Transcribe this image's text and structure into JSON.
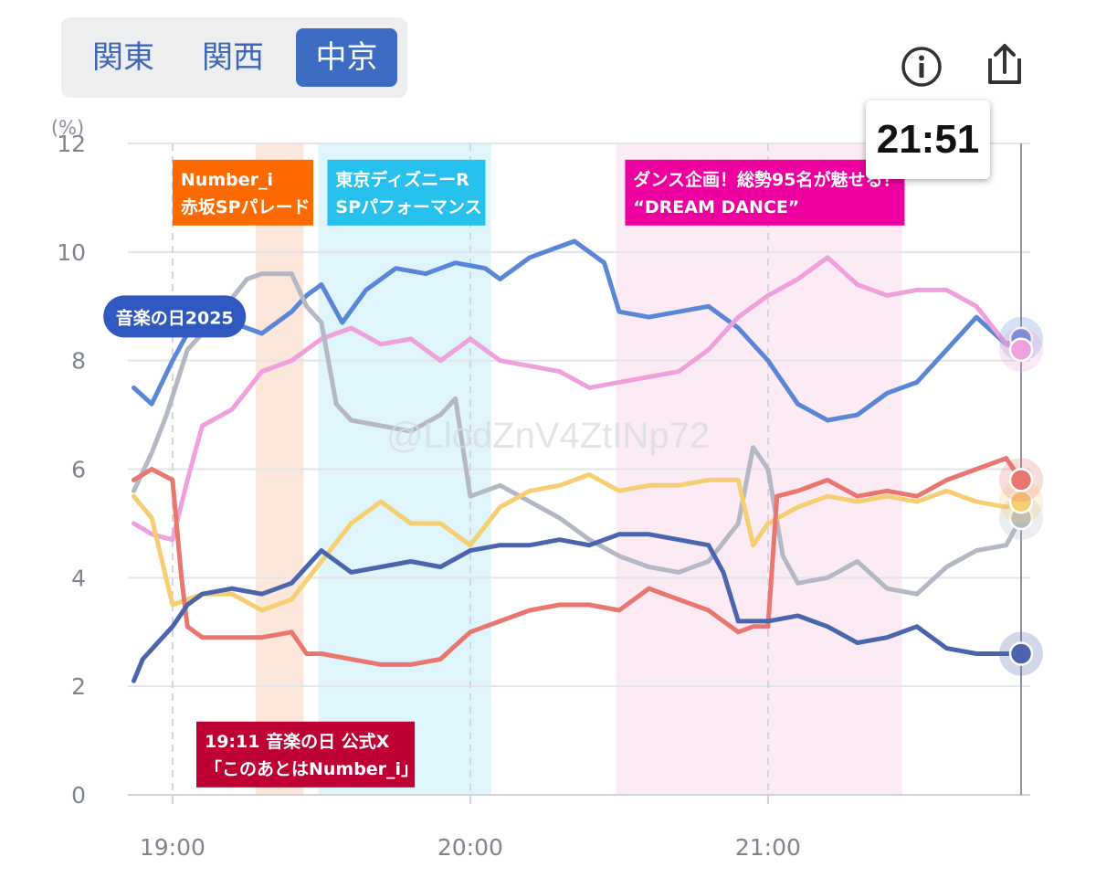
{
  "tabs": [
    {
      "label": "関東",
      "active": false
    },
    {
      "label": "関西",
      "active": false
    },
    {
      "label": "中京",
      "active": true
    }
  ],
  "icons": {
    "info": "info-icon",
    "share": "share-icon"
  },
  "time_readout": "21:51",
  "watermark": "@LlodZnV4ZtINp72",
  "chart_data": {
    "type": "line",
    "ylabel": "(%)",
    "ylim": [
      0,
      12
    ],
    "yticks": [
      "0",
      "2",
      "4",
      "6",
      "8",
      "10",
      "12"
    ],
    "xlim": [
      18.85,
      21.85
    ],
    "xticks": [
      {
        "value": 19,
        "label": "19:00"
      },
      {
        "value": 20,
        "label": "20:00"
      },
      {
        "value": 21,
        "label": "21:00"
      }
    ],
    "grid": true,
    "cursor_x": 21.85,
    "bands": [
      {
        "start": 19.28,
        "end": 19.44,
        "color": "#fde6da"
      },
      {
        "start": 19.49,
        "end": 20.07,
        "color": "#dff5fc"
      },
      {
        "start": 20.49,
        "end": 21.45,
        "color": "#fcebf4"
      }
    ],
    "annotations": [
      {
        "lines": [
          "Number_i",
          "赤坂SPパレード"
        ],
        "color": "#ff6a00",
        "at": 19.0,
        "y": 11.7
      },
      {
        "lines": [
          "東京ディズニーR",
          "SPパフォーマンス"
        ],
        "color": "#28c0ec",
        "at": 19.52,
        "y": 11.7
      },
      {
        "lines": [
          "ダンス企画！総勢95名が魅せる！",
          "“DREAM DANCE”"
        ],
        "color": "#ee00a0",
        "at": 20.52,
        "y": 11.7
      },
      {
        "lines": [
          "19:11 音楽の日 公式X",
          "「このあとはNumber_i」"
        ],
        "color": "#bf0033",
        "at": 19.08,
        "y": 1.35
      }
    ],
    "program_label": {
      "text": "音楽の日2025",
      "color": "#2f58c0",
      "x": 19.05,
      "y": 9.2
    },
    "series": [
      {
        "color": "#5a86d8",
        "x": [
          18.87,
          18.93,
          19.0,
          19.05,
          19.1,
          19.2,
          19.3,
          19.4,
          19.45,
          19.5,
          19.57,
          19.65,
          19.75,
          19.85,
          19.95,
          20.05,
          20.1,
          20.2,
          20.3,
          20.35,
          20.45,
          20.5,
          20.6,
          20.7,
          20.8,
          20.9,
          21.0,
          21.1,
          21.2,
          21.3,
          21.4,
          21.5,
          21.6,
          21.7,
          21.8,
          21.85
        ],
        "values": [
          7.5,
          7.2,
          8.0,
          8.5,
          8.6,
          8.7,
          8.5,
          8.9,
          9.2,
          9.4,
          8.7,
          9.3,
          9.7,
          9.6,
          9.8,
          9.7,
          9.5,
          9.9,
          10.1,
          10.2,
          9.8,
          8.9,
          8.8,
          8.9,
          9.0,
          8.6,
          8.0,
          7.2,
          6.9,
          7.0,
          7.4,
          7.6,
          8.2,
          8.8,
          8.3,
          8.4
        ]
      },
      {
        "color": "#f0a0dc",
        "x": [
          18.87,
          18.93,
          19.0,
          19.05,
          19.1,
          19.2,
          19.3,
          19.4,
          19.5,
          19.6,
          19.7,
          19.8,
          19.9,
          20.0,
          20.1,
          20.2,
          20.3,
          20.4,
          20.5,
          20.6,
          20.7,
          20.8,
          20.9,
          21.0,
          21.1,
          21.2,
          21.3,
          21.4,
          21.5,
          21.6,
          21.7,
          21.8,
          21.85
        ],
        "values": [
          5.0,
          4.8,
          4.7,
          5.8,
          6.8,
          7.1,
          7.8,
          8.0,
          8.4,
          8.6,
          8.3,
          8.4,
          8.0,
          8.4,
          8.0,
          7.9,
          7.8,
          7.5,
          7.6,
          7.7,
          7.8,
          8.2,
          8.8,
          9.2,
          9.5,
          9.9,
          9.4,
          9.2,
          9.3,
          9.3,
          9.0,
          8.3,
          8.2
        ]
      },
      {
        "color": "#b3b8c4",
        "x": [
          18.87,
          18.93,
          18.98,
          19.05,
          19.15,
          19.25,
          19.3,
          19.4,
          19.45,
          19.5,
          19.55,
          19.6,
          19.7,
          19.8,
          19.9,
          19.95,
          20.0,
          20.05,
          20.1,
          20.2,
          20.3,
          20.4,
          20.5,
          20.6,
          20.7,
          20.8,
          20.9,
          20.95,
          21.0,
          21.05,
          21.1,
          21.2,
          21.3,
          21.4,
          21.5,
          21.6,
          21.7,
          21.8,
          21.85
        ],
        "values": [
          5.6,
          6.3,
          7.0,
          8.2,
          8.8,
          9.5,
          9.6,
          9.6,
          9.0,
          8.7,
          7.2,
          6.9,
          6.8,
          6.7,
          7.0,
          7.3,
          5.5,
          5.6,
          5.7,
          5.4,
          5.1,
          4.7,
          4.4,
          4.2,
          4.1,
          4.3,
          5.0,
          6.4,
          6.0,
          4.4,
          3.9,
          4.0,
          4.3,
          3.8,
          3.7,
          4.2,
          4.5,
          4.6,
          5.1
        ]
      },
      {
        "color": "#f7cf72",
        "x": [
          18.87,
          18.93,
          19.0,
          19.05,
          19.1,
          19.2,
          19.3,
          19.4,
          19.5,
          19.6,
          19.7,
          19.8,
          19.9,
          20.0,
          20.1,
          20.2,
          20.3,
          20.4,
          20.5,
          20.6,
          20.7,
          20.8,
          20.9,
          20.95,
          21.0,
          21.1,
          21.2,
          21.3,
          21.4,
          21.5,
          21.6,
          21.7,
          21.8,
          21.85
        ],
        "values": [
          5.5,
          5.1,
          3.5,
          3.6,
          3.7,
          3.7,
          3.4,
          3.6,
          4.3,
          5.0,
          5.4,
          5.0,
          5.0,
          4.6,
          5.3,
          5.6,
          5.7,
          5.9,
          5.6,
          5.7,
          5.7,
          5.8,
          5.8,
          4.6,
          5.0,
          5.3,
          5.5,
          5.4,
          5.5,
          5.4,
          5.6,
          5.4,
          5.3,
          5.4
        ]
      },
      {
        "color": "#ea7670",
        "x": [
          18.87,
          18.93,
          19.0,
          19.03,
          19.05,
          19.1,
          19.2,
          19.3,
          19.4,
          19.45,
          19.5,
          19.6,
          19.7,
          19.8,
          19.9,
          20.0,
          20.05,
          20.1,
          20.2,
          20.3,
          20.4,
          20.5,
          20.6,
          20.7,
          20.8,
          20.9,
          20.95,
          21.0,
          21.03,
          21.1,
          21.2,
          21.3,
          21.4,
          21.5,
          21.6,
          21.7,
          21.8,
          21.85
        ],
        "values": [
          5.8,
          6.0,
          5.8,
          4.0,
          3.1,
          2.9,
          2.9,
          2.9,
          3.0,
          2.6,
          2.6,
          2.5,
          2.4,
          2.4,
          2.5,
          3.0,
          3.1,
          3.2,
          3.4,
          3.5,
          3.5,
          3.4,
          3.8,
          3.6,
          3.4,
          3.0,
          3.1,
          3.1,
          5.5,
          5.6,
          5.8,
          5.5,
          5.6,
          5.5,
          5.8,
          6.0,
          6.2,
          5.8
        ]
      },
      {
        "color": "#4a65ad",
        "x": [
          18.87,
          18.9,
          18.95,
          19.0,
          19.05,
          19.1,
          19.2,
          19.3,
          19.4,
          19.5,
          19.6,
          19.7,
          19.8,
          19.9,
          20.0,
          20.1,
          20.2,
          20.3,
          20.4,
          20.5,
          20.6,
          20.7,
          20.8,
          20.85,
          20.9,
          21.0,
          21.1,
          21.2,
          21.3,
          21.4,
          21.5,
          21.6,
          21.7,
          21.8,
          21.85
        ],
        "values": [
          2.1,
          2.5,
          2.8,
          3.1,
          3.5,
          3.7,
          3.8,
          3.7,
          3.9,
          4.5,
          4.1,
          4.2,
          4.3,
          4.2,
          4.5,
          4.6,
          4.6,
          4.7,
          4.6,
          4.8,
          4.8,
          4.7,
          4.6,
          4.1,
          3.2,
          3.2,
          3.3,
          3.1,
          2.8,
          2.9,
          3.1,
          2.7,
          2.6,
          2.6,
          2.6
        ]
      }
    ]
  }
}
